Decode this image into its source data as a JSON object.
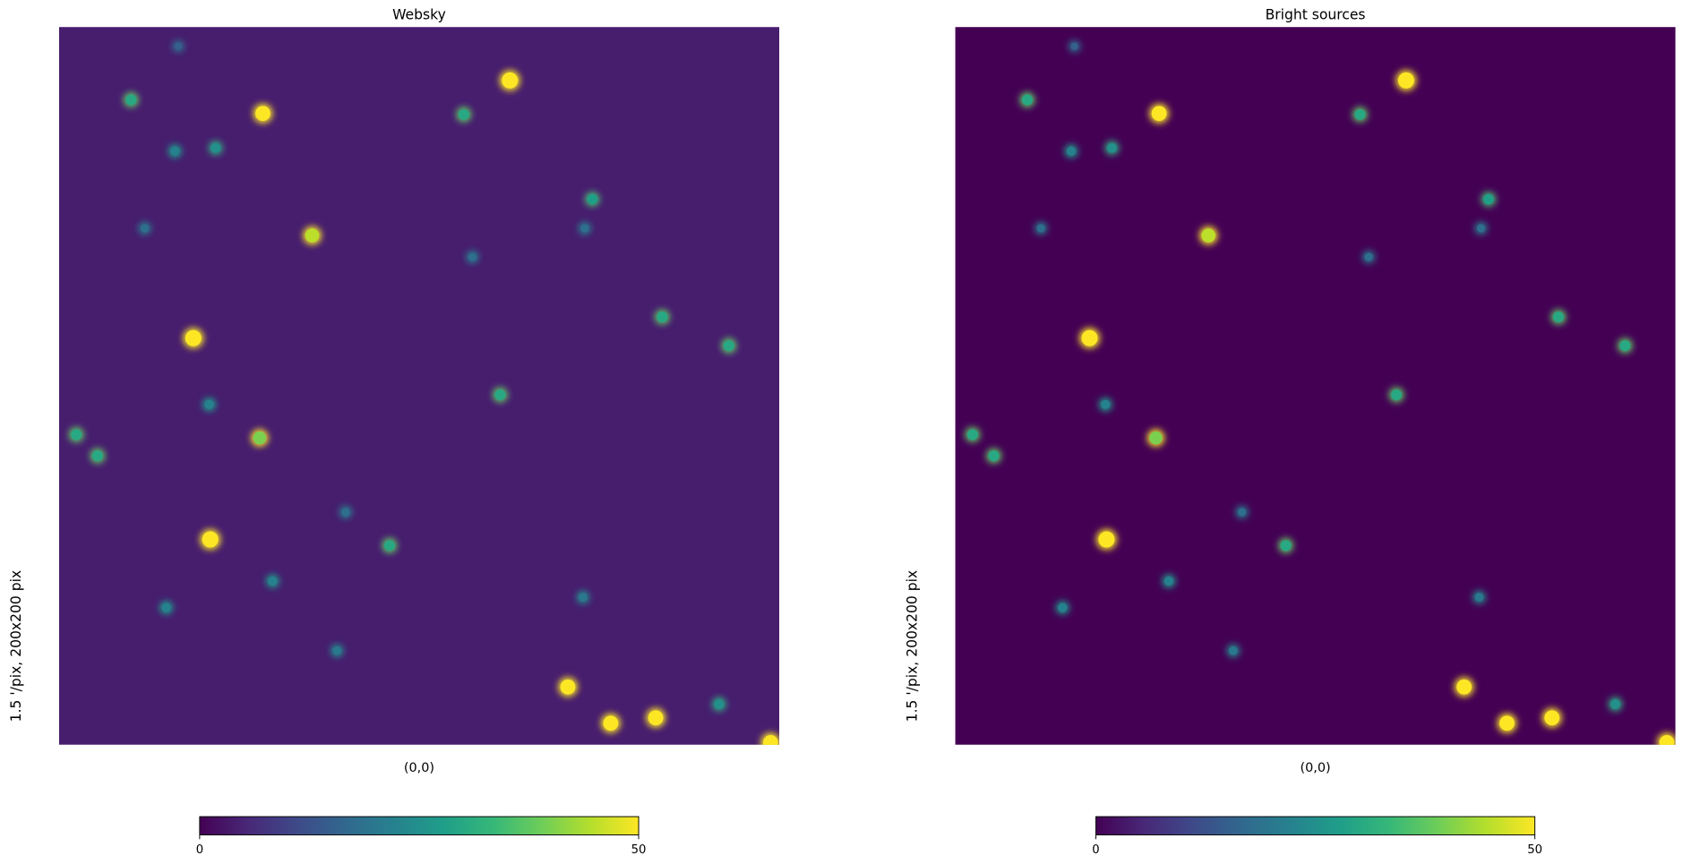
{
  "chart_data": [
    {
      "type": "image",
      "title": "Websky",
      "xlabel": "(0,0)",
      "ylabel": "1.5 '/pix,   200x200 pix",
      "cmap": "viridis",
      "background": 4,
      "clim": [
        0,
        50
      ],
      "cticks": [
        0,
        50
      ],
      "xlim": [
        0,
        200
      ],
      "ylim": [
        0,
        200
      ],
      "x": [
        125.2,
        56.6,
        70.3,
        37.3,
        42.0,
        141.3,
        153.2,
        165.7,
        197.6,
        55.7,
        20.0,
        112.4,
        43.5,
        32.2,
        148.1,
        167.5,
        186.0,
        122.5,
        4.8,
        10.7,
        41.7,
        91.8,
        59.3,
        29.8,
        145.5,
        183.3,
        114.8,
        23.8,
        146.0,
        77.2,
        79.6,
        33.1
      ],
      "y": [
        185.1,
        175.9,
        141.9,
        113.3,
        57.2,
        16.1,
        6.0,
        7.5,
        0.6,
        85.5,
        179.7,
        175.6,
        166.3,
        165.4,
        152.0,
        119.2,
        111.2,
        97.5,
        86.4,
        80.5,
        94.8,
        55.5,
        45.6,
        38.2,
        41.1,
        11.3,
        135.9,
        143.9,
        143.9,
        26.2,
        64.8,
        194.6
      ],
      "values": [
        55,
        50,
        45,
        55,
        55,
        50,
        50,
        50,
        50,
        40,
        30,
        30,
        25,
        22,
        28,
        30,
        30,
        30,
        30,
        30,
        22,
        30,
        22,
        22,
        20,
        25,
        18,
        18,
        18,
        20,
        18,
        15
      ]
    },
    {
      "type": "image",
      "title": "Bright sources",
      "xlabel": "(0,0)",
      "ylabel": "1.5 '/pix,   200x200 pix",
      "cmap": "viridis",
      "background": 0,
      "clim": [
        0,
        50
      ],
      "cticks": [
        0,
        50
      ],
      "xlim": [
        0,
        200
      ],
      "ylim": [
        0,
        200
      ],
      "x": [
        125.2,
        56.6,
        70.3,
        37.3,
        42.0,
        141.3,
        153.2,
        165.7,
        197.6,
        55.7,
        20.0,
        112.4,
        43.5,
        32.2,
        148.1,
        167.5,
        186.0,
        122.5,
        4.8,
        10.7,
        41.7,
        91.8,
        59.3,
        29.8,
        145.5,
        183.3,
        114.8,
        23.8,
        146.0,
        77.2,
        79.6,
        33.1
      ],
      "y": [
        185.1,
        175.9,
        141.9,
        113.3,
        57.2,
        16.1,
        6.0,
        7.5,
        0.6,
        85.5,
        179.7,
        175.6,
        166.3,
        165.4,
        152.0,
        119.2,
        111.2,
        97.5,
        86.4,
        80.5,
        94.8,
        55.5,
        45.6,
        38.2,
        41.1,
        11.3,
        135.9,
        143.9,
        143.9,
        26.2,
        64.8,
        194.6
      ],
      "values": [
        55,
        50,
        45,
        55,
        55,
        50,
        50,
        50,
        50,
        40,
        30,
        30,
        25,
        22,
        28,
        30,
        30,
        30,
        30,
        30,
        22,
        30,
        22,
        22,
        20,
        25,
        18,
        18,
        18,
        20,
        18,
        15
      ]
    }
  ]
}
